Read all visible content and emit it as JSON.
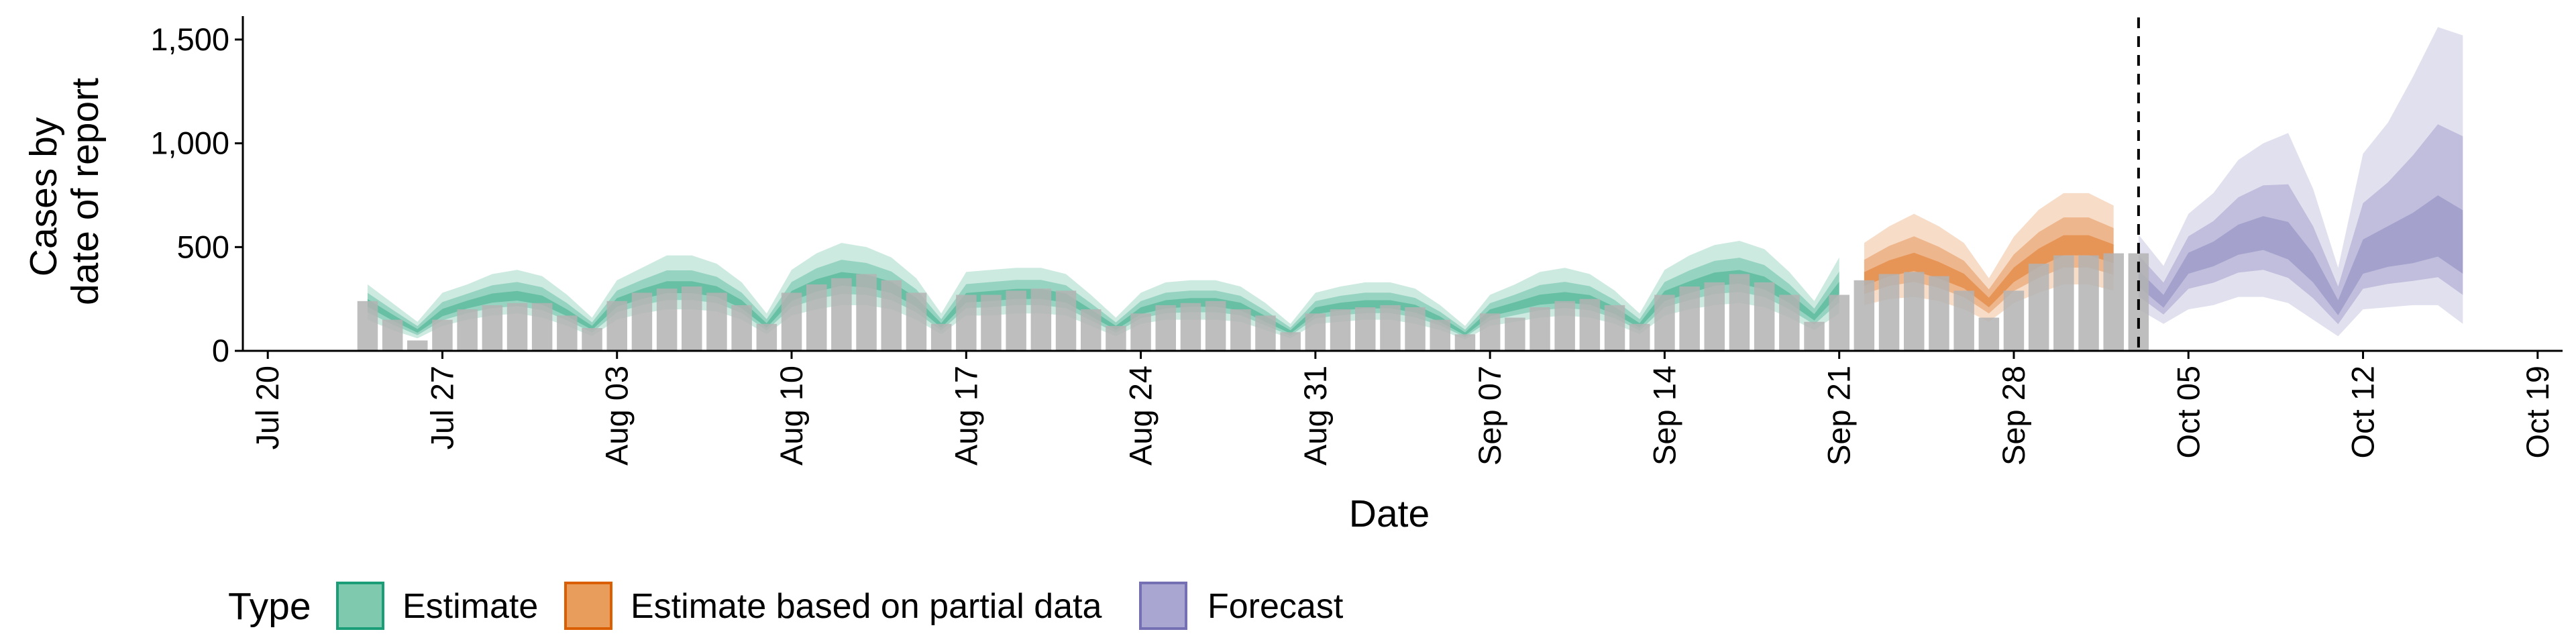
{
  "chart_data": {
    "type": "area",
    "title": "",
    "xlabel": "Date",
    "ylabel_lines": [
      "Cases by",
      "date of report"
    ],
    "x_start": "2020-07-20",
    "xlim": [
      "2020-07-19",
      "2020-10-20"
    ],
    "ylim": [
      0,
      1600
    ],
    "y_ticks": [
      0,
      500,
      1000,
      1500
    ],
    "y_tick_labels": [
      "0",
      "500",
      "1,000",
      "1,500"
    ],
    "x_ticks": [
      "2020-07-20",
      "2020-07-27",
      "2020-08-03",
      "2020-08-10",
      "2020-08-17",
      "2020-08-24",
      "2020-08-31",
      "2020-09-07",
      "2020-09-14",
      "2020-09-21",
      "2020-09-28",
      "2020-10-05",
      "2020-10-12",
      "2020-10-19"
    ],
    "x_tick_labels": [
      "Jul 20",
      "Jul 27",
      "Aug 03",
      "Aug 10",
      "Aug 17",
      "Aug 24",
      "Aug 31",
      "Sep 07",
      "Sep 14",
      "Sep 21",
      "Sep 28",
      "Oct 05",
      "Oct 12",
      "Oct 19"
    ],
    "vline_date": "2020-10-03",
    "grid": false,
    "legend": {
      "position": "bottom",
      "title": "Type",
      "entries": [
        {
          "label": "Estimate",
          "fill": "#7fc9ae",
          "stroke": "#1b9e77"
        },
        {
          "label": "Estimate based on partial data",
          "fill": "#e89d5c",
          "stroke": "#d95f02"
        },
        {
          "label": "Forecast",
          "fill": "#aaa6d2",
          "stroke": "#7570b3"
        }
      ]
    },
    "bars": {
      "color": "#b3b3b3",
      "start": "2020-07-24",
      "values": [
        240,
        150,
        50,
        150,
        200,
        220,
        230,
        230,
        170,
        110,
        240,
        280,
        300,
        310,
        280,
        220,
        130,
        280,
        320,
        350,
        370,
        340,
        280,
        130,
        270,
        270,
        290,
        300,
        290,
        200,
        120,
        180,
        220,
        230,
        240,
        200,
        170,
        90,
        180,
        200,
        210,
        220,
        210,
        150,
        80,
        180,
        160,
        210,
        240,
        250,
        220,
        130,
        270,
        310,
        330,
        370,
        330,
        270,
        140,
        270,
        340,
        370,
        380,
        360,
        290,
        160,
        290,
        420,
        460,
        460,
        470,
        470
      ]
    },
    "series": [
      {
        "name": "Estimate",
        "fill": "#1b9e77",
        "start": "2020-07-24",
        "median": [
          230,
          160,
          95,
          180,
          220,
          250,
          260,
          240,
          180,
          110,
          230,
          270,
          300,
          300,
          280,
          220,
          120,
          260,
          310,
          340,
          330,
          300,
          230,
          120,
          250,
          260,
          270,
          270,
          250,
          180,
          110,
          190,
          220,
          230,
          230,
          210,
          150,
          90,
          190,
          210,
          220,
          220,
          200,
          150,
          80,
          180,
          210,
          240,
          250,
          240,
          190,
          120,
          260,
          300,
          340,
          350,
          320,
          250,
          160,
          300
        ],
        "lo90": [
          150,
          100,
          60,
          120,
          150,
          170,
          180,
          160,
          120,
          70,
          150,
          180,
          200,
          200,
          190,
          150,
          80,
          170,
          200,
          220,
          220,
          200,
          150,
          80,
          170,
          170,
          180,
          180,
          170,
          120,
          70,
          130,
          150,
          150,
          150,
          140,
          100,
          60,
          130,
          140,
          150,
          150,
          130,
          100,
          55,
          120,
          140,
          160,
          170,
          160,
          130,
          80,
          170,
          200,
          220,
          230,
          210,
          160,
          100,
          180
        ],
        "hi90": [
          320,
          230,
          140,
          280,
          320,
          370,
          390,
          360,
          270,
          160,
          340,
          400,
          460,
          460,
          420,
          330,
          180,
          390,
          470,
          520,
          500,
          450,
          350,
          180,
          380,
          390,
          400,
          400,
          370,
          270,
          160,
          280,
          330,
          340,
          340,
          310,
          230,
          130,
          280,
          310,
          330,
          330,
          300,
          220,
          120,
          270,
          320,
          380,
          400,
          370,
          290,
          180,
          390,
          460,
          510,
          530,
          490,
          380,
          240,
          450
        ]
      },
      {
        "name": "Estimate based on partial data",
        "fill": "#d95f02",
        "start": "2020-09-22",
        "median": [
          340,
          390,
          420,
          380,
          330,
          230,
          360,
          440,
          500,
          500,
          460
        ],
        "lo90": [
          220,
          250,
          260,
          240,
          200,
          140,
          230,
          280,
          320,
          320,
          290
        ],
        "hi90": [
          520,
          600,
          660,
          600,
          520,
          350,
          550,
          680,
          760,
          760,
          700
        ]
      },
      {
        "name": "Forecast",
        "fill": "#7570b3",
        "start": "2020-10-03",
        "median": [
          340,
          230,
          420,
          460,
          520,
          550,
          500,
          380,
          200,
          420,
          460,
          480,
          520,
          440
        ],
        "lo90": [
          200,
          130,
          200,
          220,
          260,
          260,
          230,
          150,
          70,
          200,
          210,
          220,
          220,
          130
        ],
        "hi90": [
          560,
          410,
          660,
          760,
          920,
          1000,
          1050,
          780,
          400,
          950,
          1100,
          1320,
          1560,
          1520
        ]
      }
    ]
  }
}
